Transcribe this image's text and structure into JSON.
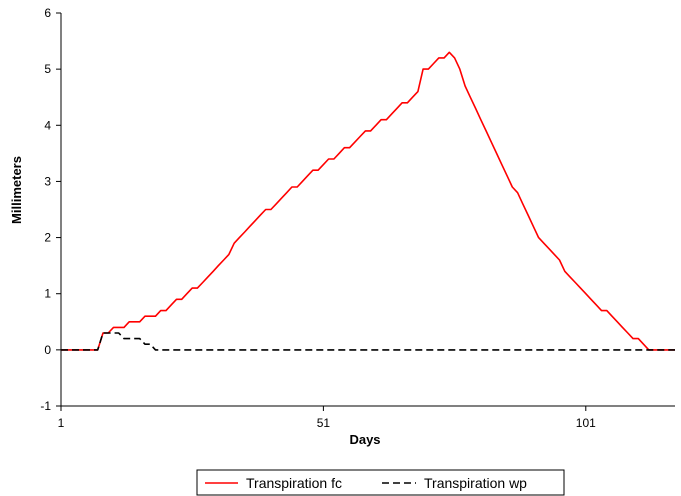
{
  "chart_data": {
    "type": "line",
    "title": "",
    "xlabel": "Days",
    "ylabel": "Millimeters",
    "xlim": [
      1,
      118
    ],
    "ylim": [
      -1,
      6
    ],
    "x_ticks": [
      1,
      51,
      101
    ],
    "y_ticks": [
      -1,
      0,
      1,
      2,
      3,
      4,
      5,
      6
    ],
    "grid": false,
    "legend_position": "bottom",
    "series": [
      {
        "name": "Transpiration fc",
        "color": "#ff0000",
        "dash": "solid",
        "points": [
          [
            1,
            0
          ],
          [
            8,
            0
          ],
          [
            9,
            0.3
          ],
          [
            10,
            0.3
          ],
          [
            11,
            0.4
          ],
          [
            13,
            0.4
          ],
          [
            14,
            0.5
          ],
          [
            16,
            0.5
          ],
          [
            17,
            0.6
          ],
          [
            19,
            0.6
          ],
          [
            20,
            0.7
          ],
          [
            21,
            0.7
          ],
          [
            22,
            0.8
          ],
          [
            23,
            0.9
          ],
          [
            24,
            0.9
          ],
          [
            25,
            1.0
          ],
          [
            26,
            1.1
          ],
          [
            27,
            1.1
          ],
          [
            28,
            1.2
          ],
          [
            29,
            1.3
          ],
          [
            30,
            1.4
          ],
          [
            31,
            1.5
          ],
          [
            32,
            1.6
          ],
          [
            33,
            1.7
          ],
          [
            34,
            1.9
          ],
          [
            35,
            2.0
          ],
          [
            36,
            2.1
          ],
          [
            37,
            2.2
          ],
          [
            38,
            2.3
          ],
          [
            39,
            2.4
          ],
          [
            40,
            2.5
          ],
          [
            41,
            2.5
          ],
          [
            42,
            2.6
          ],
          [
            43,
            2.7
          ],
          [
            44,
            2.8
          ],
          [
            45,
            2.9
          ],
          [
            46,
            2.9
          ],
          [
            47,
            3.0
          ],
          [
            48,
            3.1
          ],
          [
            49,
            3.2
          ],
          [
            50,
            3.2
          ],
          [
            51,
            3.3
          ],
          [
            52,
            3.4
          ],
          [
            53,
            3.4
          ],
          [
            54,
            3.5
          ],
          [
            55,
            3.6
          ],
          [
            56,
            3.6
          ],
          [
            57,
            3.7
          ],
          [
            58,
            3.8
          ],
          [
            59,
            3.9
          ],
          [
            60,
            3.9
          ],
          [
            61,
            4.0
          ],
          [
            62,
            4.1
          ],
          [
            63,
            4.1
          ],
          [
            64,
            4.2
          ],
          [
            65,
            4.3
          ],
          [
            66,
            4.4
          ],
          [
            67,
            4.4
          ],
          [
            68,
            4.5
          ],
          [
            69,
            4.6
          ],
          [
            70,
            5.0
          ],
          [
            71,
            5.0
          ],
          [
            72,
            5.1
          ],
          [
            73,
            5.2
          ],
          [
            74,
            5.2
          ],
          [
            75,
            5.3
          ],
          [
            76,
            5.2
          ],
          [
            77,
            5.0
          ],
          [
            78,
            4.7
          ],
          [
            79,
            4.5
          ],
          [
            80,
            4.3
          ],
          [
            81,
            4.1
          ],
          [
            82,
            3.9
          ],
          [
            83,
            3.7
          ],
          [
            84,
            3.5
          ],
          [
            85,
            3.3
          ],
          [
            86,
            3.1
          ],
          [
            87,
            2.9
          ],
          [
            88,
            2.8
          ],
          [
            89,
            2.6
          ],
          [
            90,
            2.4
          ],
          [
            91,
            2.2
          ],
          [
            92,
            2.0
          ],
          [
            93,
            1.9
          ],
          [
            94,
            1.8
          ],
          [
            95,
            1.7
          ],
          [
            96,
            1.6
          ],
          [
            97,
            1.4
          ],
          [
            98,
            1.3
          ],
          [
            99,
            1.2
          ],
          [
            100,
            1.1
          ],
          [
            101,
            1.0
          ],
          [
            102,
            0.9
          ],
          [
            103,
            0.8
          ],
          [
            104,
            0.7
          ],
          [
            105,
            0.7
          ],
          [
            106,
            0.6
          ],
          [
            107,
            0.5
          ],
          [
            108,
            0.4
          ],
          [
            109,
            0.3
          ],
          [
            110,
            0.2
          ],
          [
            111,
            0.2
          ],
          [
            112,
            0.1
          ],
          [
            113,
            0.0
          ],
          [
            118,
            0.0
          ]
        ]
      },
      {
        "name": "Transpiration wp",
        "color": "#000000",
        "dash": "dashed",
        "points": [
          [
            1,
            0
          ],
          [
            8,
            0
          ],
          [
            9,
            0.3
          ],
          [
            12,
            0.3
          ],
          [
            13,
            0.2
          ],
          [
            16,
            0.2
          ],
          [
            17,
            0.1
          ],
          [
            18,
            0.1
          ],
          [
            19,
            0.0
          ],
          [
            118,
            0.0
          ]
        ]
      }
    ]
  }
}
